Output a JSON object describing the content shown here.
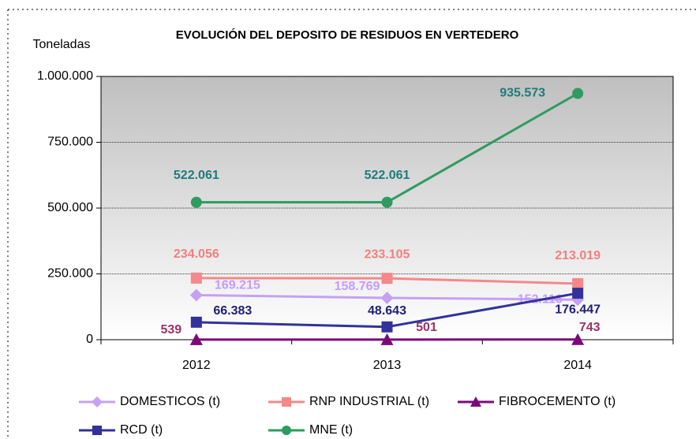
{
  "chart_data": {
    "type": "line",
    "title": "EVOLUCIÓN DEL DEPOSITO DE RESIDUOS EN VERTEDERO",
    "y_label": "Toneladas",
    "categories": [
      "2012",
      "2013",
      "2014"
    ],
    "ylim": [
      0,
      1000000
    ],
    "yticks": [
      0,
      {
        "value": 250000,
        "label": "250.000"
      },
      {
        "value": 500000,
        "label": "500.000"
      },
      {
        "value": 750000,
        "label": "750.000"
      },
      {
        "value": 1000000,
        "label": "1.000.000"
      }
    ],
    "grid": true,
    "legend": "bottom",
    "series": [
      {
        "name": "DOMESTICOS (t)",
        "color": "#c6a0f5",
        "values": [
          169215,
          158769,
          152116
        ],
        "value_labels": [
          "169.215",
          "158.769",
          "152.116"
        ]
      },
      {
        "name": "RNP INDUSTRIAL (t)",
        "color": "#f4888a",
        "values": [
          234056,
          233105,
          213019
        ],
        "value_labels": [
          "234.056",
          "233.105",
          "213.019"
        ]
      },
      {
        "name": "FIBROCEMENTO (t)",
        "color": "#7a0a7a",
        "values": [
          539,
          501,
          743
        ],
        "value_labels": [
          "539",
          "501",
          "743"
        ]
      },
      {
        "name": "RCD (t)",
        "color": "#32329a",
        "values": [
          66383,
          48643,
          176447
        ],
        "value_labels": [
          "66.383",
          "48.643",
          "176.447"
        ]
      },
      {
        "name": "MNE (t)",
        "color": "#2e9b61",
        "values": [
          522061,
          522061,
          935573
        ],
        "value_labels": [
          "522.061",
          "522.061",
          "935.573"
        ]
      }
    ]
  }
}
